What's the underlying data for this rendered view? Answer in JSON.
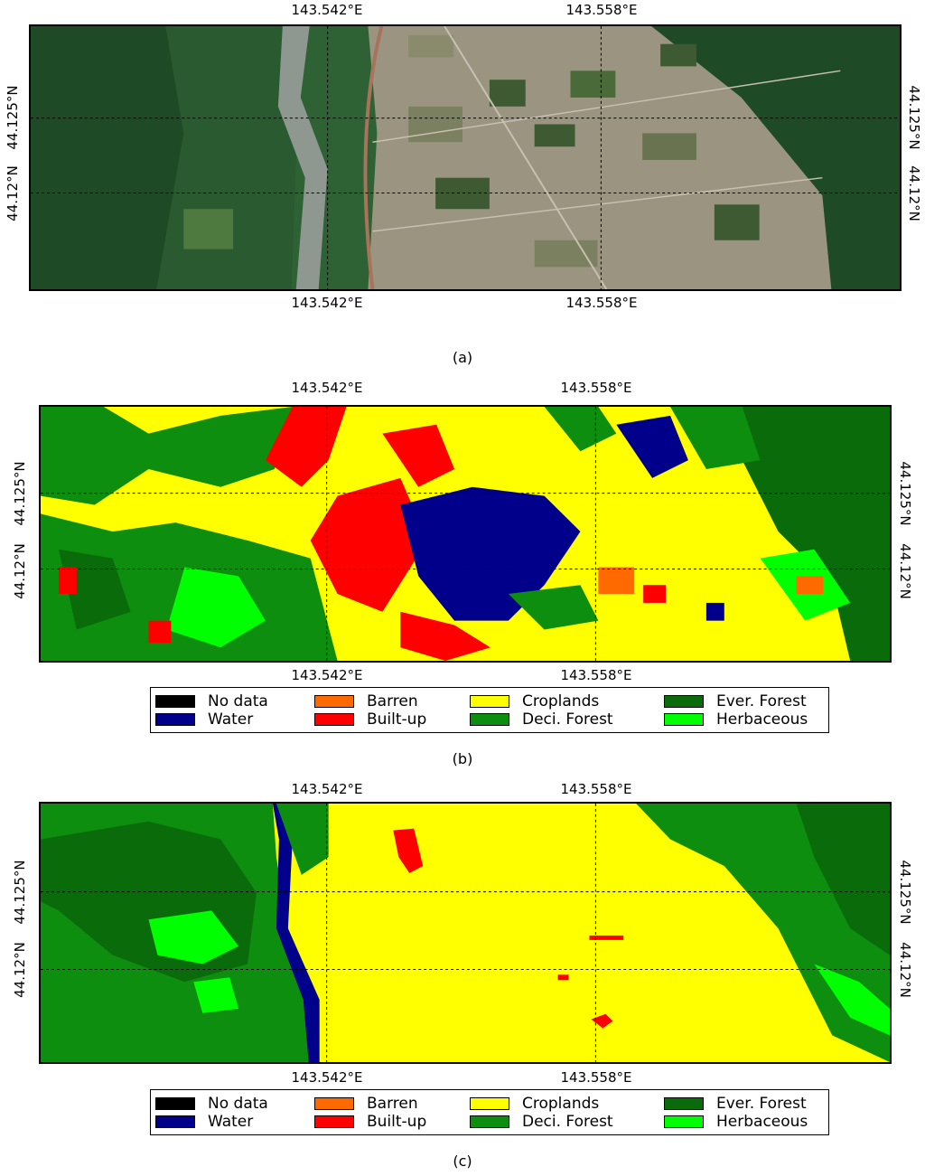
{
  "axes": {
    "lon_ticks": [
      "143.542°E",
      "143.558°E"
    ],
    "lat_ticks": [
      "44.125°N",
      "44.12°N"
    ]
  },
  "captions": {
    "a": "(a)",
    "b": "(b)",
    "c": "(c)"
  },
  "legend": [
    {
      "label": "No data",
      "color": "#000000"
    },
    {
      "label": "Barren",
      "color": "#ff6a00"
    },
    {
      "label": "Croplands",
      "color": "#ffff00"
    },
    {
      "label": "Ever. Forest",
      "color": "#0a6b0a"
    },
    {
      "label": "Water",
      "color": "#00008b"
    },
    {
      "label": "Built-up",
      "color": "#ff0000"
    },
    {
      "label": "Deci. Forest",
      "color": "#0e8e0e"
    },
    {
      "label": "Herbaceous",
      "color": "#00ff00"
    }
  ],
  "imagery_colors": {
    "forest_dark": "#1f4a26",
    "forest": "#2e6234",
    "river": "#8e9890",
    "fields": "#9a9480",
    "field_dark": "#3e5a32",
    "road": "#a8735a"
  }
}
